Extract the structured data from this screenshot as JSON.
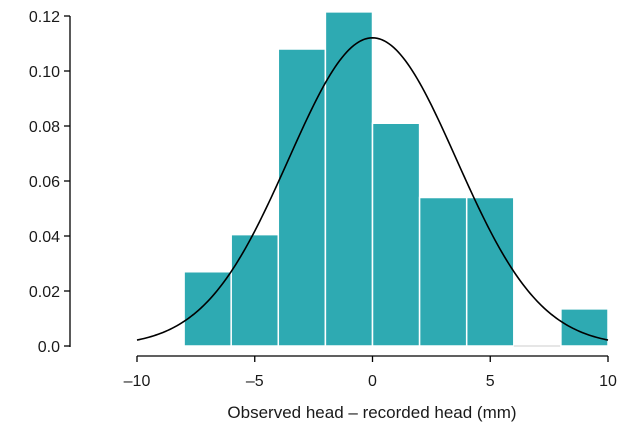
{
  "chart_data": {
    "type": "bar",
    "subtype": "histogram",
    "title": "",
    "xlabel": "Observed head – recorded head (mm)",
    "ylabel": "",
    "xlim": [
      -10,
      10
    ],
    "ylim": [
      0,
      0.12
    ],
    "x_ticks": [
      -10,
      -5,
      0,
      5,
      10
    ],
    "x_tick_labels": [
      "–10",
      "–5",
      "0",
      "5",
      "10"
    ],
    "y_ticks": [
      0,
      0.02,
      0.04,
      0.06,
      0.08,
      0.1,
      0.12
    ],
    "y_tick_labels": [
      "0.0",
      "0.02",
      "0.04",
      "0.06",
      "0.08",
      "0.10",
      "0.12"
    ],
    "bins": [
      {
        "start": -8,
        "end": -6,
        "density": 0.027
      },
      {
        "start": -6,
        "end": -4,
        "density": 0.0405
      },
      {
        "start": -4,
        "end": -2,
        "density": 0.108
      },
      {
        "start": -2,
        "end": 0,
        "density": 0.1215
      },
      {
        "start": 0,
        "end": 2,
        "density": 0.081
      },
      {
        "start": 2,
        "end": 4,
        "density": 0.054
      },
      {
        "start": 4,
        "end": 6,
        "density": 0.054
      },
      {
        "start": 6,
        "end": 8,
        "density": 0
      },
      {
        "start": 8,
        "end": 10,
        "density": 0.0135
      }
    ],
    "curve": {
      "type": "normal-density",
      "mean": 0.0,
      "sd": 3.56,
      "domain": [
        -10,
        10
      ]
    },
    "bar_color": "#2eaab2",
    "bar_edge_color": "#ffffff",
    "curve_color": "#000000",
    "grid": false
  }
}
